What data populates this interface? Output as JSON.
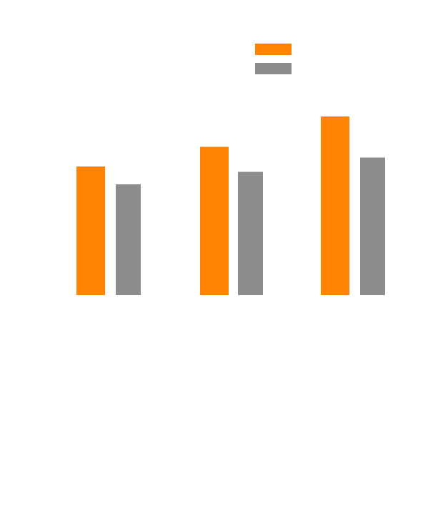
{
  "chart_data": {
    "type": "bar",
    "title": "",
    "xlabel": "",
    "ylabel": "",
    "categories": [
      "",
      "",
      ""
    ],
    "ylim": [
      0,
      100
    ],
    "grid": false,
    "legend_position": "top-right",
    "series": [
      {
        "name": "",
        "color": "#FF8300",
        "values": [
          72,
          83,
          100
        ]
      },
      {
        "name": "",
        "color": "#8C8C8C",
        "values": [
          62,
          69,
          77
        ]
      }
    ]
  }
}
